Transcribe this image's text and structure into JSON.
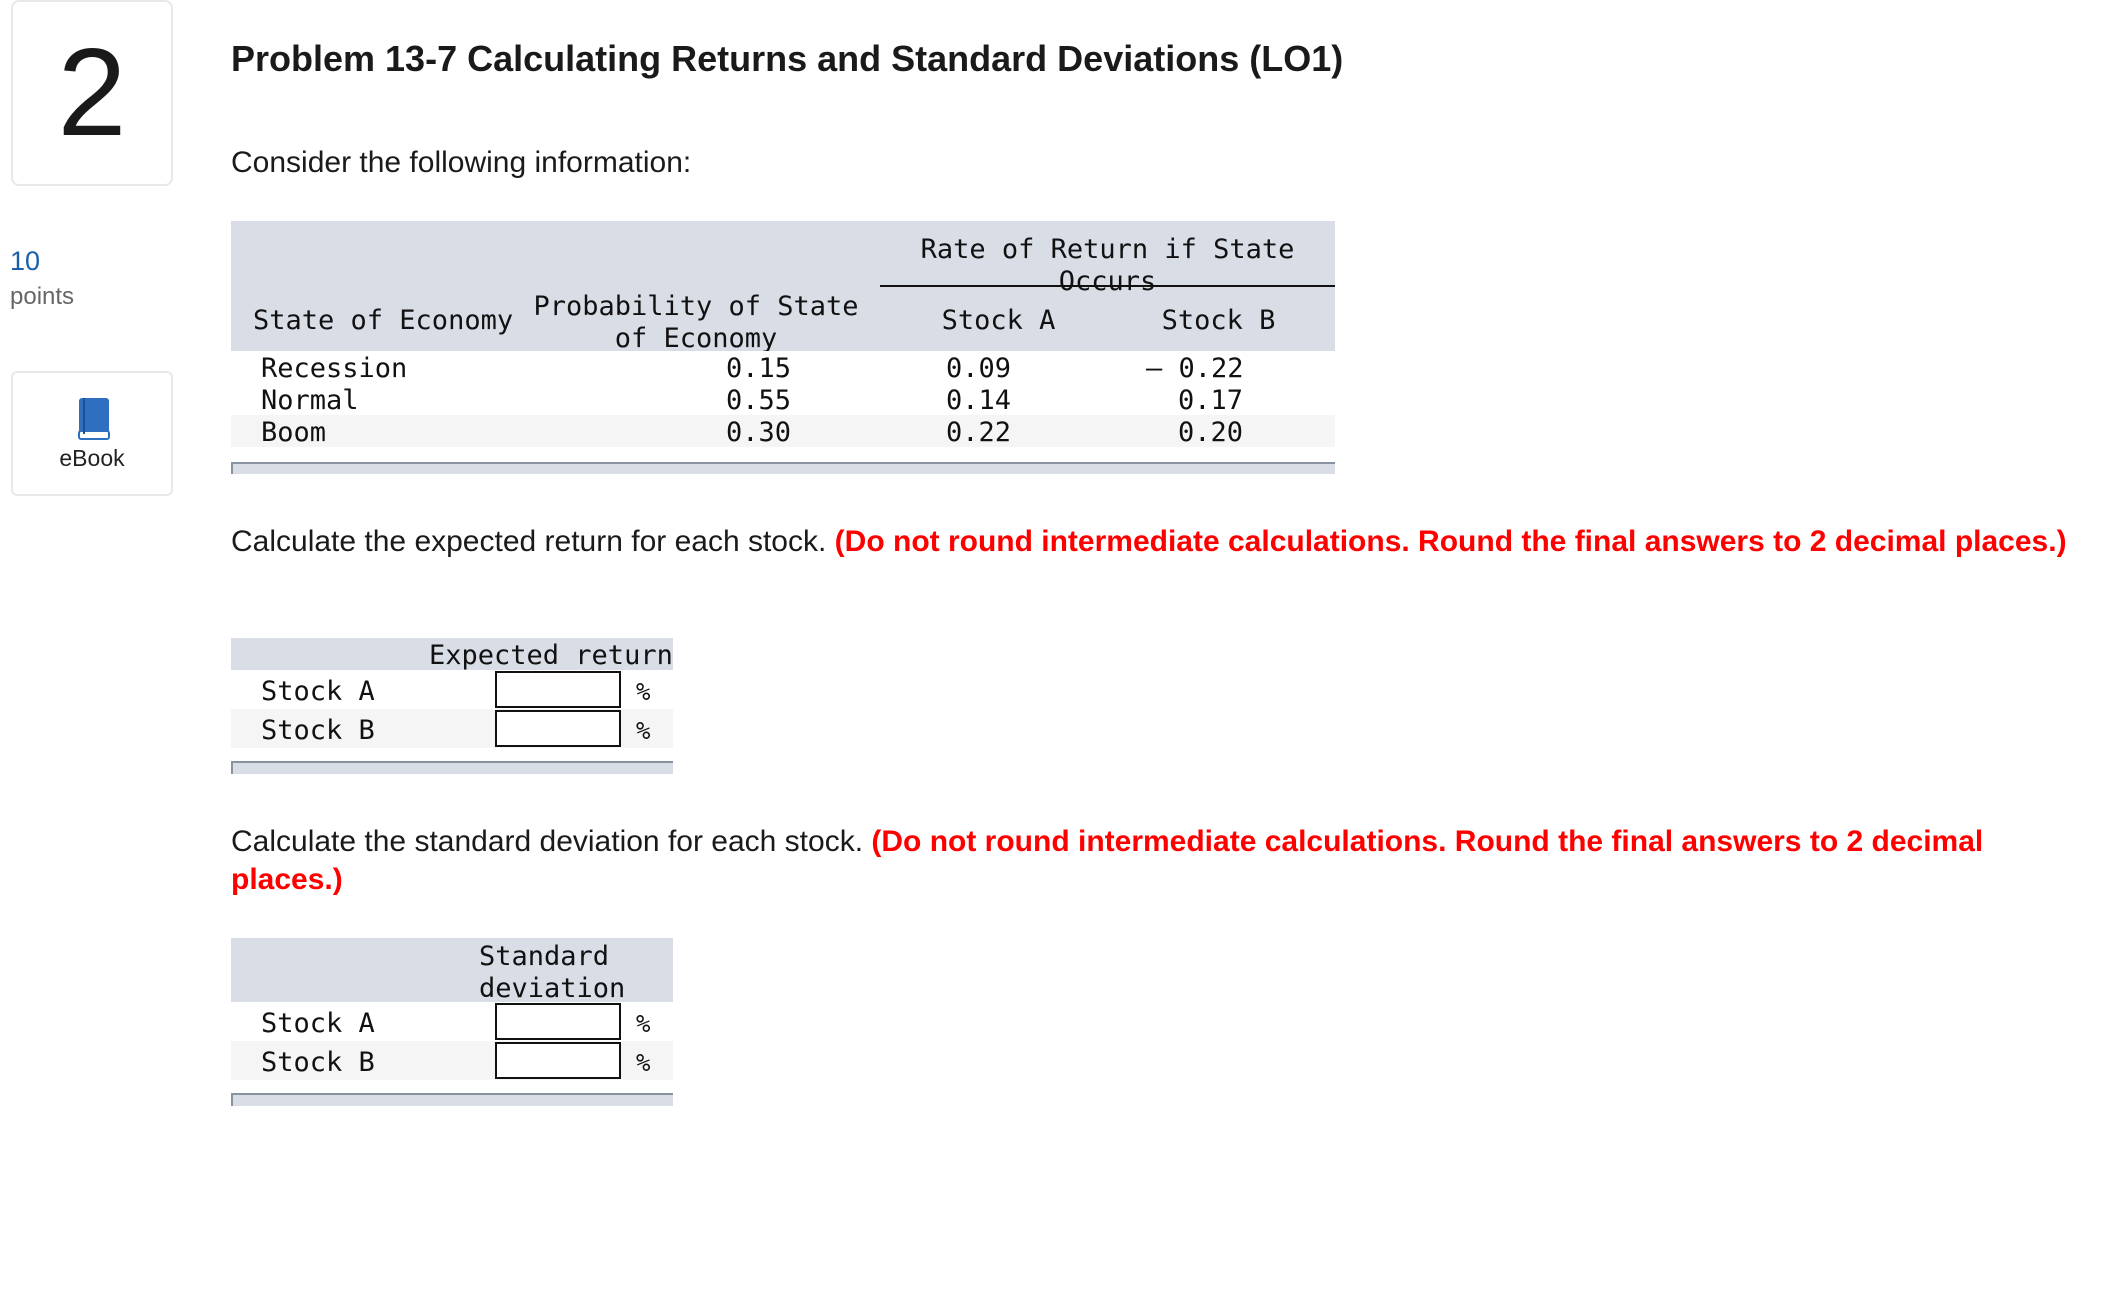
{
  "question": {
    "number": "2",
    "points_value": "10",
    "points_label": "points",
    "ebook_label": "eBook"
  },
  "problem": {
    "title": "Problem 13-7 Calculating Returns and Standard Deviations (LO1)",
    "intro": "Consider the following information:"
  },
  "info_table": {
    "group_header_line1": "Rate of Return if State",
    "group_header_line2": "Occurs",
    "col_state": "State of Economy",
    "col_prob_line1": "Probability of State",
    "col_prob_line2": "of Economy",
    "col_stock_a": "Stock A",
    "col_stock_b": "Stock B",
    "rows": [
      {
        "state": "Recession",
        "prob": "0.15",
        "a": "0.09",
        "b": "– 0.22"
      },
      {
        "state": "Normal",
        "prob": "0.55",
        "a": "0.14",
        "b": "0.17"
      },
      {
        "state": "Boom",
        "prob": "0.30",
        "a": "0.22",
        "b": "0.20"
      }
    ]
  },
  "expected_section": {
    "instruction": "Calculate the expected return for each stock.",
    "note": "(Do not round intermediate calculations. Round the final answers to 2 decimal places.)",
    "header": "Expected return",
    "rows": [
      {
        "label": "Stock A",
        "value": "",
        "unit": "%"
      },
      {
        "label": "Stock B",
        "value": "",
        "unit": "%"
      }
    ]
  },
  "std_section": {
    "instruction": "Calculate the standard deviation for each stock.",
    "note": "(Do not round intermediate calculations. Round the final answers to 2 decimal places.)",
    "header_line1": "Standard",
    "header_line2": "deviation",
    "rows": [
      {
        "label": "Stock A",
        "value": "",
        "unit": "%"
      },
      {
        "label": "Stock B",
        "value": "",
        "unit": "%"
      }
    ]
  },
  "colors": {
    "header_bg": "#d8dde6",
    "alt_row_bg": "#f5f5f5",
    "note_red": "#ff0000",
    "points_blue": "#1a5fa8",
    "ebook_blue": "#2f6fbf"
  },
  "icons": {
    "ebook": "book-icon"
  }
}
